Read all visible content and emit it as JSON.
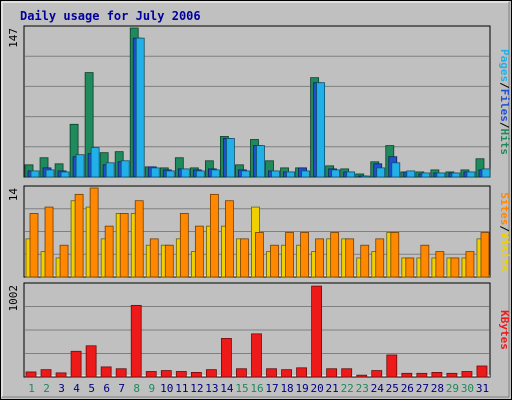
{
  "chart_data": [
    {
      "type": "bar",
      "panel": "hits-files-pages",
      "title": "Daily usage for July 2006",
      "categories": [
        "1",
        "2",
        "3",
        "4",
        "5",
        "6",
        "7",
        "8",
        "9",
        "10",
        "11",
        "12",
        "13",
        "14",
        "15",
        "16",
        "17",
        "18",
        "19",
        "20",
        "21",
        "22",
        "23",
        "24",
        "25",
        "26",
        "27",
        "28",
        "29",
        "30",
        "31"
      ],
      "scale_max_label": "147",
      "ylim": [
        0,
        147
      ],
      "series": [
        {
          "name": "Hits",
          "color": "#1f8a5c",
          "values": [
            12,
            19,
            13,
            52,
            103,
            24,
            25,
            147,
            10,
            9,
            19,
            9,
            16,
            40,
            12,
            37,
            16,
            9,
            9,
            98,
            11,
            8,
            3,
            15,
            31,
            5,
            5,
            7,
            5,
            7,
            18
          ]
        },
        {
          "name": "Files",
          "color": "#2050d0",
          "values": [
            6,
            9,
            6,
            20,
            23,
            12,
            15,
            137,
            10,
            7,
            8,
            7,
            8,
            38,
            7,
            31,
            6,
            5,
            9,
            93,
            8,
            5,
            1,
            13,
            20,
            5,
            3,
            4,
            4,
            5,
            7
          ]
        },
        {
          "name": "Pages",
          "color": "#22b0e8",
          "values": [
            6,
            7,
            5,
            22,
            29,
            14,
            16,
            137,
            9,
            6,
            8,
            6,
            7,
            38,
            6,
            31,
            6,
            5,
            6,
            93,
            7,
            5,
            1,
            9,
            14,
            6,
            4,
            4,
            4,
            5,
            8
          ]
        }
      ],
      "legend": [
        "Pages",
        "Files",
        "Hits"
      ],
      "legend_sep": "/"
    },
    {
      "type": "bar",
      "panel": "sites-visits",
      "categories": [
        "1",
        "2",
        "3",
        "4",
        "5",
        "6",
        "7",
        "8",
        "9",
        "10",
        "11",
        "12",
        "13",
        "14",
        "15",
        "16",
        "17",
        "18",
        "19",
        "20",
        "21",
        "22",
        "23",
        "24",
        "25",
        "26",
        "27",
        "28",
        "29",
        "30",
        "31"
      ],
      "scale_max_label": "14",
      "ylim": [
        0,
        14
      ],
      "series": [
        {
          "name": "Visits",
          "color": "#f0d000",
          "values": [
            6,
            4,
            3,
            12,
            11,
            6,
            10,
            10,
            5,
            5,
            6,
            4,
            8,
            8,
            6,
            11,
            4,
            5,
            5,
            4,
            6,
            6,
            3,
            4,
            7,
            3,
            3,
            3,
            3,
            3,
            6
          ]
        },
        {
          "name": "Sites",
          "color": "#ff8800",
          "values": [
            10,
            11,
            5,
            13,
            14,
            8,
            10,
            12,
            6,
            5,
            10,
            8,
            13,
            12,
            6,
            7,
            5,
            7,
            7,
            6,
            7,
            6,
            5,
            6,
            7,
            3,
            5,
            4,
            3,
            4,
            7
          ]
        }
      ],
      "legend": [
        "Sites",
        "Visits"
      ],
      "legend_sep": "/"
    },
    {
      "type": "bar",
      "panel": "kbytes",
      "categories": [
        "1",
        "2",
        "3",
        "4",
        "5",
        "6",
        "7",
        "8",
        "9",
        "10",
        "11",
        "12",
        "13",
        "14",
        "15",
        "16",
        "17",
        "18",
        "19",
        "20",
        "21",
        "22",
        "23",
        "24",
        "25",
        "26",
        "27",
        "28",
        "29",
        "30",
        "31"
      ],
      "scale_max_label": "1002",
      "ylim": [
        0,
        1002
      ],
      "series": [
        {
          "name": "KBytes",
          "color": "#ee1a1a",
          "values": [
            55,
            80,
            45,
            280,
            340,
            110,
            90,
            780,
            60,
            70,
            60,
            50,
            80,
            420,
            90,
            470,
            90,
            80,
            100,
            990,
            90,
            90,
            20,
            70,
            240,
            40,
            40,
            50,
            40,
            60,
            120
          ]
        }
      ],
      "legend": [
        "KBytes"
      ],
      "x_label_colors": [
        "#1f8a5c",
        "#1f8a5c",
        "#000080",
        "#000080",
        "#000080",
        "#000080",
        "#000080",
        "#1f8a5c",
        "#1f8a5c",
        "#000080",
        "#000080",
        "#000080",
        "#000080",
        "#000080",
        "#1f8a5c",
        "#1f8a5c",
        "#000080",
        "#000080",
        "#000080",
        "#000080",
        "#000080",
        "#1f8a5c",
        "#1f8a5c",
        "#000080",
        "#000080",
        "#000080",
        "#000080",
        "#000080",
        "#1f8a5c",
        "#1f8a5c",
        "#000080"
      ]
    }
  ]
}
